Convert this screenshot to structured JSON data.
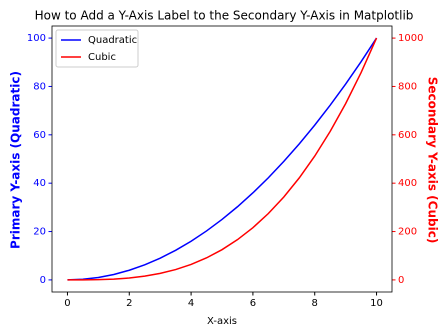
{
  "chart_data": {
    "type": "line",
    "title": "How to Add a Y-Axis Label to the Secondary Y-Axis in Matplotlib",
    "x_label": "X-axis",
    "y_label": "Primary Y-axis (Quadratic)",
    "y2_label": "Secondary Y-axis (Cubic)",
    "x": [
      0,
      0.5,
      1,
      1.5,
      2,
      2.5,
      3,
      3.5,
      4,
      4.5,
      5,
      5.5,
      6,
      6.5,
      7,
      7.5,
      8,
      8.5,
      9,
      9.5,
      10
    ],
    "series": [
      {
        "name": "Quadratic",
        "color": "#0000ff",
        "axis": "y",
        "values": [
          0,
          0.25,
          1,
          2.25,
          4,
          6.25,
          9,
          12.25,
          16,
          20.25,
          25,
          30.25,
          36,
          42.25,
          49,
          56.25,
          64,
          72.25,
          81,
          90.25,
          100
        ]
      },
      {
        "name": "Cubic",
        "color": "#ff0000",
        "axis": "y2",
        "values": [
          0,
          0.125,
          1,
          3.375,
          8,
          15.625,
          27,
          42.875,
          64,
          91.125,
          125,
          166.375,
          216,
          274.625,
          343,
          421.875,
          512,
          614.125,
          729,
          857.375,
          1000
        ]
      }
    ],
    "xlim": [
      -0.5,
      10.5
    ],
    "xticks": [
      0,
      2,
      4,
      6,
      8,
      10
    ],
    "ylim": [
      -5,
      105
    ],
    "yticks": [
      0,
      20,
      40,
      60,
      80,
      100
    ],
    "y2lim": [
      -50,
      1050
    ],
    "y2ticks": [
      0,
      200,
      400,
      600,
      800,
      1000
    ],
    "legend": "upper left",
    "grid": false
  }
}
